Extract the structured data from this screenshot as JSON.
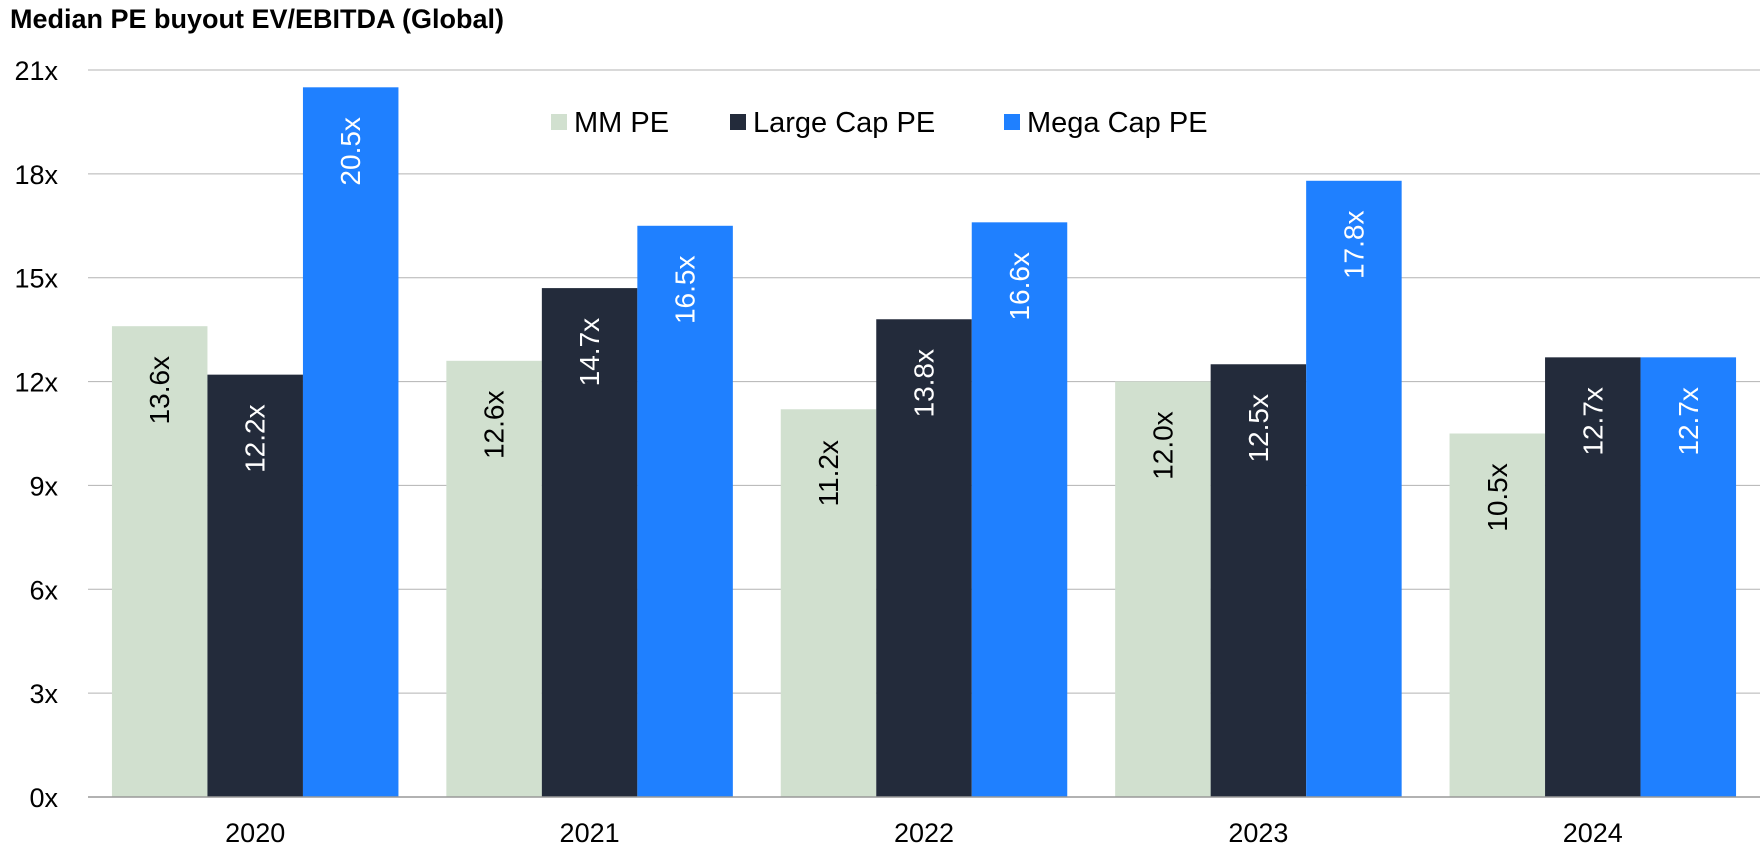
{
  "chart_data": {
    "type": "bar",
    "title": "Median PE buyout EV/EBITDA (Global)",
    "categories": [
      "2020",
      "2021",
      "2022",
      "2023",
      "2024"
    ],
    "series": [
      {
        "name": "MM PE",
        "color": "#d1e0cf",
        "label_color": "#000000",
        "values": [
          13.6,
          12.6,
          11.2,
          12.0,
          10.5
        ],
        "labels": [
          "13.6x",
          "12.6x",
          "11.2x",
          "12.0x",
          "10.5x"
        ]
      },
      {
        "name": "Large Cap PE",
        "color": "#232b3b",
        "label_color": "#ffffff",
        "values": [
          12.2,
          14.7,
          13.8,
          12.5,
          12.7
        ],
        "labels": [
          "12.2x",
          "14.7x",
          "13.8x",
          "12.5x",
          "12.7x"
        ]
      },
      {
        "name": "Mega Cap PE",
        "color": "#1f80ff",
        "label_color": "#ffffff",
        "values": [
          20.5,
          16.5,
          16.6,
          17.8,
          12.7
        ],
        "labels": [
          "20.5x",
          "16.5x",
          "16.6x",
          "17.8x",
          "12.7x"
        ]
      }
    ],
    "ylim": [
      0,
      21
    ],
    "yticks": [
      0,
      3,
      6,
      9,
      12,
      15,
      18,
      21
    ],
    "ytick_labels": [
      "0x",
      "3x",
      "6x",
      "9x",
      "12x",
      "15x",
      "18x",
      "21x"
    ],
    "xlabel": "",
    "ylabel": "",
    "grid": true,
    "legend_position": "top-center",
    "gridline_color": "#b3b3b3"
  }
}
